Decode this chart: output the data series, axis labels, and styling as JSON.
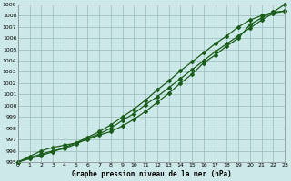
{
  "xlabel": "Graphe pression niveau de la mer (hPa)",
  "bg_color": "#cce8e8",
  "grid_color": "#99bbbb",
  "line_color": "#1a5c1a",
  "xmin": 0,
  "xmax": 23,
  "ymin": 995,
  "ymax": 1009,
  "yticks": [
    995,
    996,
    997,
    998,
    999,
    1000,
    1001,
    1002,
    1003,
    1004,
    1005,
    1006,
    1007,
    1008,
    1009
  ],
  "xticks": [
    0,
    1,
    2,
    3,
    4,
    5,
    6,
    7,
    8,
    9,
    10,
    11,
    12,
    13,
    14,
    15,
    16,
    17,
    18,
    19,
    20,
    21,
    22,
    23
  ],
  "line1": [
    995.0,
    995.4,
    995.7,
    996.0,
    996.2,
    996.6,
    997.1,
    997.5,
    998.0,
    998.7,
    999.3,
    1000.1,
    1000.8,
    1001.6,
    1002.4,
    1003.2,
    1004.0,
    1004.8,
    1005.5,
    1006.2,
    1006.9,
    1007.6,
    1008.2,
    1008.4
  ],
  "line2": [
    995.0,
    995.3,
    995.6,
    995.9,
    996.3,
    996.7,
    997.2,
    997.7,
    998.3,
    999.0,
    999.7,
    1000.5,
    1001.4,
    1002.2,
    1003.1,
    1003.9,
    1004.7,
    1005.5,
    1006.2,
    1007.0,
    1007.6,
    1008.0,
    1008.3,
    1008.4
  ],
  "line3": [
    995.0,
    995.5,
    996.0,
    996.3,
    996.5,
    996.7,
    997.0,
    997.4,
    997.7,
    998.2,
    998.8,
    999.5,
    1000.3,
    1001.1,
    1002.0,
    1002.8,
    1003.8,
    1004.5,
    1005.3,
    1006.0,
    1007.2,
    1007.8,
    1008.3,
    1009.0
  ]
}
